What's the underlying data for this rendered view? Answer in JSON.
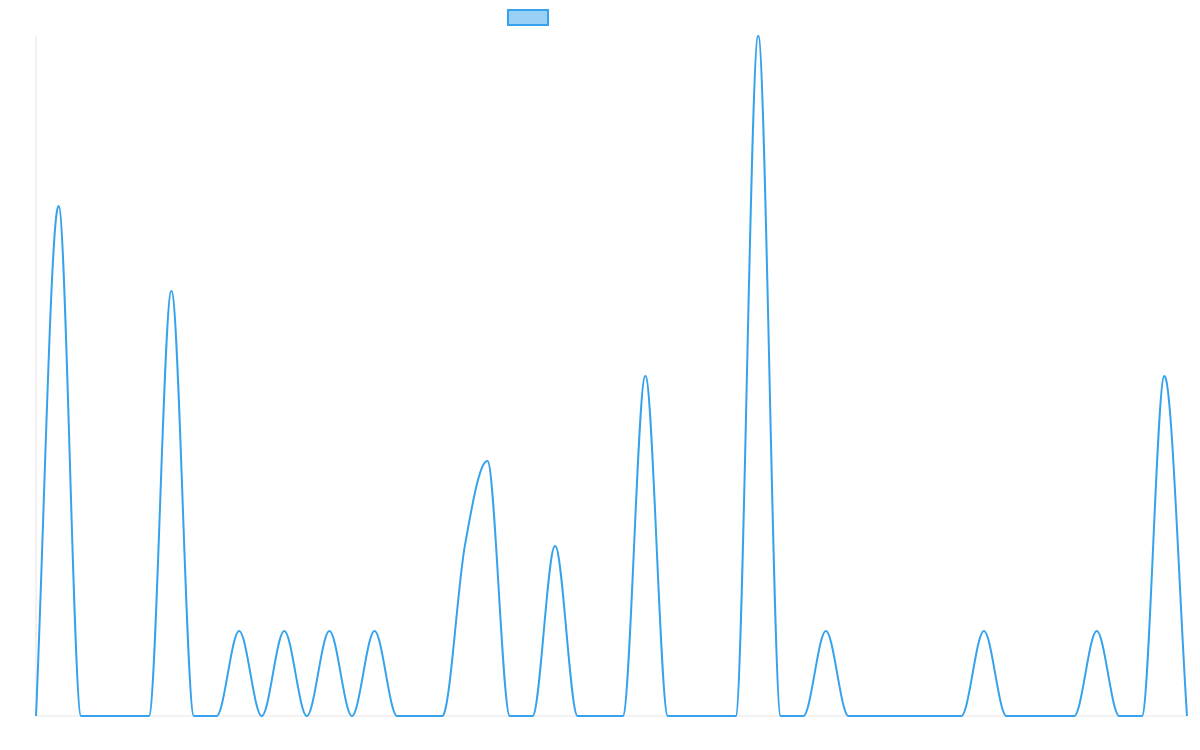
{
  "chart_data": {
    "type": "line",
    "categories": [
      null,
      null,
      null,
      null,
      null,
      null,
      null,
      null,
      null,
      null,
      null,
      null,
      null,
      null,
      null,
      null,
      null,
      null,
      null,
      null,
      null,
      null,
      null,
      null,
      null,
      null,
      null,
      null,
      null,
      null,
      null,
      null,
      null,
      null,
      null,
      null,
      null,
      null,
      null,
      null,
      null,
      null,
      null,
      null,
      null,
      null,
      null,
      null,
      null,
      null,
      null,
      null
    ],
    "series": [
      {
        "color": "#36a2eb",
        "values": [
          0,
          6,
          0,
          0,
          0,
          0,
          5,
          0,
          0,
          1,
          0,
          1,
          0,
          1,
          0,
          1,
          0,
          0,
          0,
          2,
          3,
          0,
          0,
          2,
          0,
          0,
          0,
          4,
          0,
          0,
          0,
          0,
          8,
          0,
          0,
          1,
          0,
          0,
          0,
          0,
          0,
          0,
          1,
          0,
          0,
          0,
          0,
          1,
          0,
          0,
          4,
          0
        ]
      }
    ],
    "ylim": [
      0,
      8
    ]
  }
}
